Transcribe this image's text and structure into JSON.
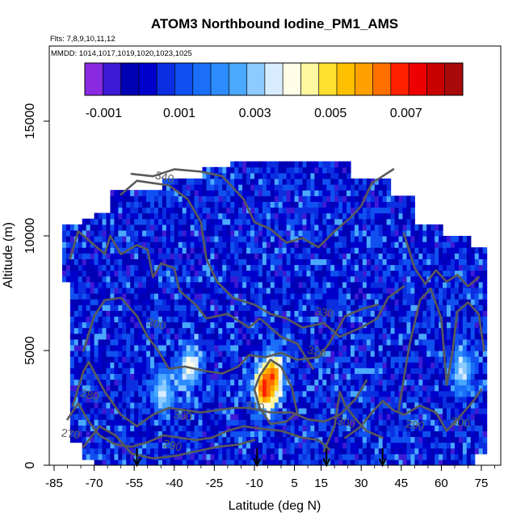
{
  "chart_data": {
    "type": "heatmap",
    "title": "ATOM3 Northbound Iodine_PM1_AMS",
    "flights_note": "Flts: 7,8,9,10,11,12",
    "dates_note": "MMDD: 1014,1017,1019,1020,1023,1025",
    "xlabel": "Latitude (deg N)",
    "ylabel": "Altitude (m)",
    "xlim": [
      -85,
      80
    ],
    "ylim": [
      0,
      17500
    ],
    "x_ticks": [
      -85,
      -70,
      -55,
      -40,
      -25,
      -10,
      5,
      15,
      30,
      45,
      60,
      75
    ],
    "y_ticks": [
      0,
      5000,
      10000,
      15000
    ],
    "colorbar": {
      "min": -0.0015,
      "max": 0.0085,
      "ticks": [
        -0.001,
        0.001,
        0.003,
        0.005,
        0.007
      ],
      "tick_labels": [
        "-0.001",
        "0.001",
        "0.003",
        "0.005",
        "0.007"
      ],
      "colors": [
        "#8a2be2",
        "#3d1ad6",
        "#0000b4",
        "#0000cc",
        "#0a2ee0",
        "#1050f0",
        "#1a6ef8",
        "#2d8cff",
        "#4aa8ff",
        "#8ccaff",
        "#d8ecff",
        "#fffde6",
        "#fff6a0",
        "#ffe030",
        "#ffc000",
        "#ffa000",
        "#ff7000",
        "#ff2000",
        "#ee0000",
        "#c80000",
        "#a80a0a"
      ]
    },
    "highlights": [
      {
        "lat": -4,
        "alt": 3800,
        "value": 0.0065
      },
      {
        "lat": -7,
        "alt": 3200,
        "value": 0.007
      },
      {
        "lat": -35,
        "alt": 4200,
        "value": 0.004
      },
      {
        "lat": -45,
        "alt": 3000,
        "value": 0.0035
      },
      {
        "lat": 67,
        "alt": 4000,
        "value": 0.0035
      }
    ],
    "contour_labels": [
      {
        "text": "340",
        "lat": -44,
        "alt": 12400
      },
      {
        "text": "330",
        "lat": 16,
        "alt": 6500
      },
      {
        "text": "320",
        "lat": 13,
        "alt": 4800
      },
      {
        "text": "310",
        "lat": -10,
        "alt": 2400
      },
      {
        "text": "300",
        "lat": -47,
        "alt": 6000
      },
      {
        "text": "300",
        "lat": -37,
        "alt": 2000
      },
      {
        "text": "300",
        "lat": 24,
        "alt": 1700
      },
      {
        "text": "300",
        "lat": 67,
        "alt": 1700
      },
      {
        "text": "290",
        "lat": -41,
        "alt": 700
      },
      {
        "text": "290",
        "lat": 50,
        "alt": 1600
      },
      {
        "text": "280",
        "lat": -72,
        "alt": 2900
      },
      {
        "text": "270",
        "lat": -79,
        "alt": 1200
      }
    ],
    "flight_markers_lat": [
      -54,
      -9,
      17,
      38
    ]
  }
}
